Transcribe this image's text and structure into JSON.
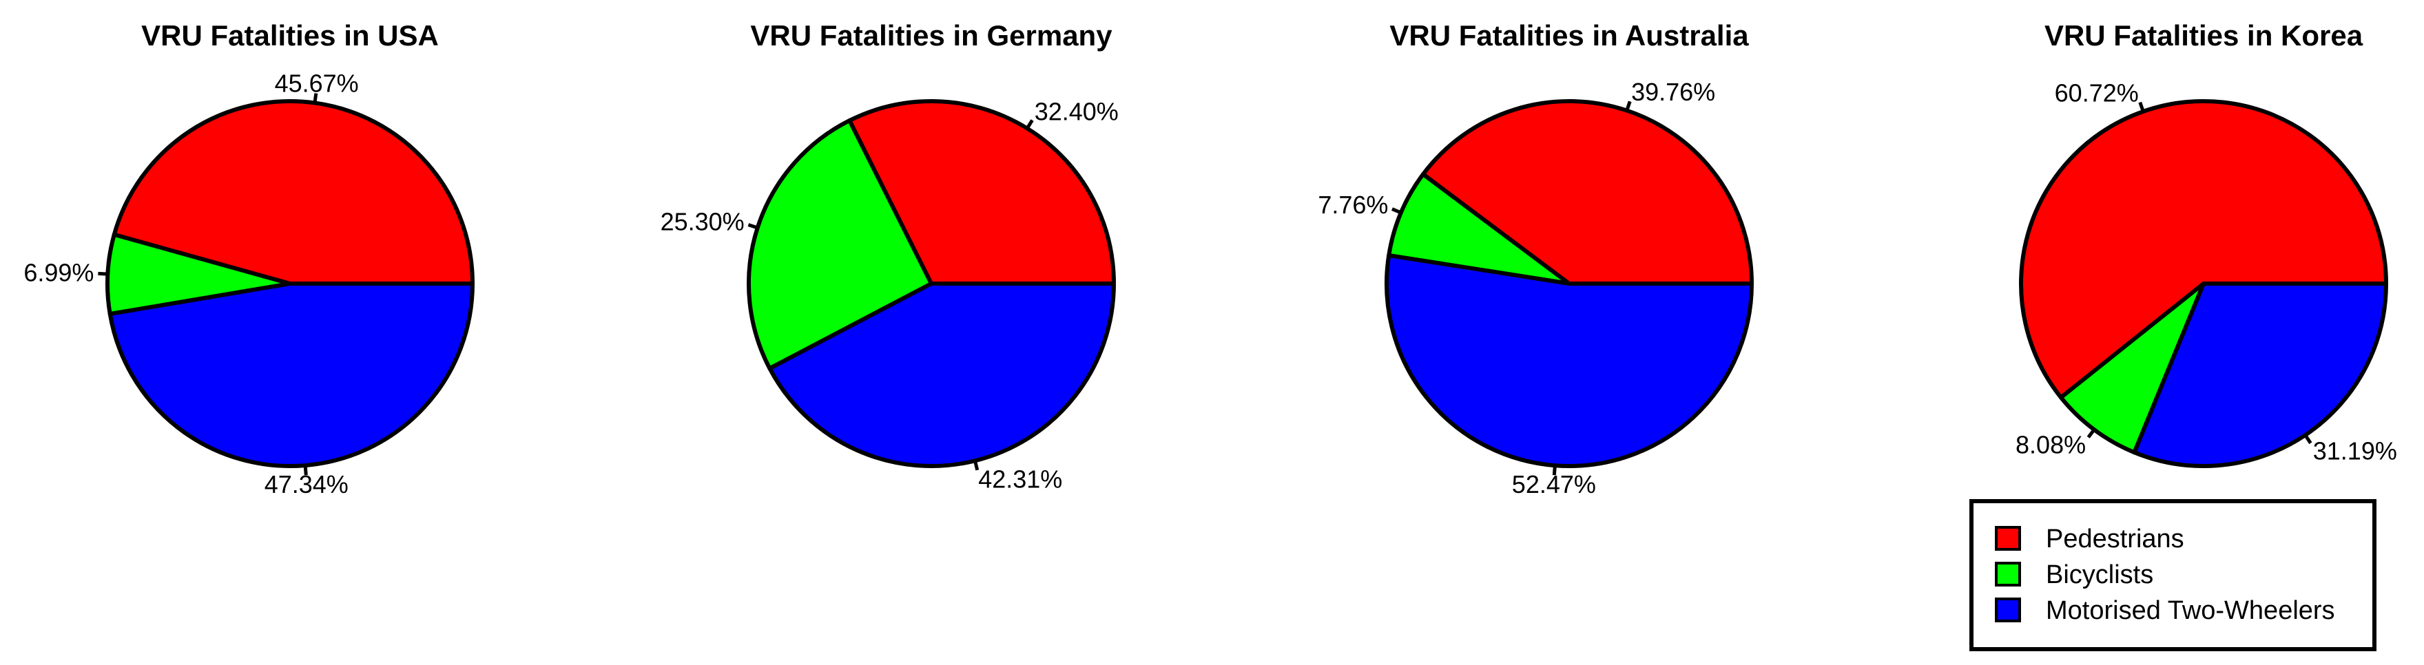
{
  "chart_data": [
    {
      "type": "pie",
      "title": "VRU Fatalities in USA",
      "slices": [
        {
          "label": "Pedestrians",
          "value": 45.67,
          "text": "45.67%"
        },
        {
          "label": "Bicyclists",
          "value": 6.99,
          "text": "6.99%"
        },
        {
          "label": "Motorised Two-Wheelers",
          "value": 47.34,
          "text": "47.34%"
        }
      ]
    },
    {
      "type": "pie",
      "title": "VRU Fatalities in Germany",
      "slices": [
        {
          "label": "Pedestrians",
          "value": 32.4,
          "text": "32.40%"
        },
        {
          "label": "Bicyclists",
          "value": 25.3,
          "text": "25.30%"
        },
        {
          "label": "Motorised Two-Wheelers",
          "value": 42.31,
          "text": "42.31%"
        }
      ]
    },
    {
      "type": "pie",
      "title": "VRU Fatalities in Australia",
      "slices": [
        {
          "label": "Pedestrians",
          "value": 39.76,
          "text": "39.76%"
        },
        {
          "label": "Bicyclists",
          "value": 7.76,
          "text": "7.76%"
        },
        {
          "label": "Motorised Two-Wheelers",
          "value": 52.47,
          "text": "52.47%"
        }
      ]
    },
    {
      "type": "pie",
      "title": "VRU Fatalities in Korea",
      "slices": [
        {
          "label": "Pedestrians",
          "value": 60.72,
          "text": "60.72%"
        },
        {
          "label": "Bicyclists",
          "value": 8.08,
          "text": "8.08%"
        },
        {
          "label": "Motorised Two-Wheelers",
          "value": 31.19,
          "text": "31.19%"
        }
      ]
    }
  ],
  "legend": {
    "placement": "bottom-right",
    "entries": [
      {
        "label": "Pedestrians",
        "color": "#ff0000"
      },
      {
        "label": "Bicyclists",
        "color": "#00ff00"
      },
      {
        "label": "Motorised Two-Wheelers",
        "color": "#0000ff"
      }
    ]
  },
  "colors": {
    "Pedestrians": "#ff0000",
    "Bicyclists": "#00ff00",
    "Motorised Two-Wheelers": "#0000ff",
    "outline": "#000000"
  }
}
